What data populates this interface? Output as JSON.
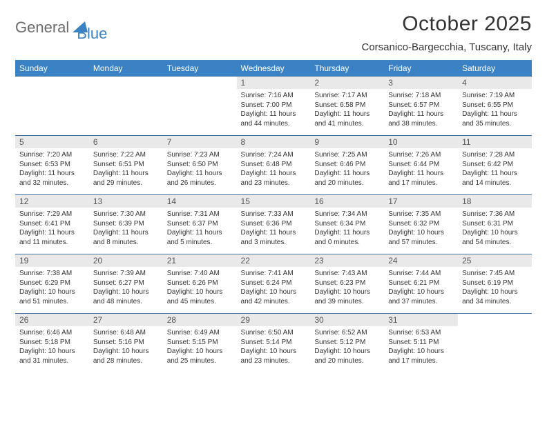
{
  "logo": {
    "word1": "General",
    "word2": "Blue",
    "mark_color": "#3b82c4",
    "text1_color": "#6b6b6b"
  },
  "header": {
    "title": "October 2025",
    "location": "Corsanico-Bargecchia, Tuscany, Italy"
  },
  "colors": {
    "header_bg": "#3b82c4",
    "header_text": "#ffffff",
    "rule": "#3b6fa0",
    "daynum_bg": "#e9e9e9",
    "body_text": "#333333"
  },
  "weekdays": [
    "Sunday",
    "Monday",
    "Tuesday",
    "Wednesday",
    "Thursday",
    "Friday",
    "Saturday"
  ],
  "cells": [
    [
      {
        "blank": true
      },
      {
        "blank": true
      },
      {
        "blank": true
      },
      {
        "n": "1",
        "sr": "7:16 AM",
        "ss": "7:00 PM",
        "dl": "11 hours and 44 minutes."
      },
      {
        "n": "2",
        "sr": "7:17 AM",
        "ss": "6:58 PM",
        "dl": "11 hours and 41 minutes."
      },
      {
        "n": "3",
        "sr": "7:18 AM",
        "ss": "6:57 PM",
        "dl": "11 hours and 38 minutes."
      },
      {
        "n": "4",
        "sr": "7:19 AM",
        "ss": "6:55 PM",
        "dl": "11 hours and 35 minutes."
      }
    ],
    [
      {
        "n": "5",
        "sr": "7:20 AM",
        "ss": "6:53 PM",
        "dl": "11 hours and 32 minutes."
      },
      {
        "n": "6",
        "sr": "7:22 AM",
        "ss": "6:51 PM",
        "dl": "11 hours and 29 minutes."
      },
      {
        "n": "7",
        "sr": "7:23 AM",
        "ss": "6:50 PM",
        "dl": "11 hours and 26 minutes."
      },
      {
        "n": "8",
        "sr": "7:24 AM",
        "ss": "6:48 PM",
        "dl": "11 hours and 23 minutes."
      },
      {
        "n": "9",
        "sr": "7:25 AM",
        "ss": "6:46 PM",
        "dl": "11 hours and 20 minutes."
      },
      {
        "n": "10",
        "sr": "7:26 AM",
        "ss": "6:44 PM",
        "dl": "11 hours and 17 minutes."
      },
      {
        "n": "11",
        "sr": "7:28 AM",
        "ss": "6:42 PM",
        "dl": "11 hours and 14 minutes."
      }
    ],
    [
      {
        "n": "12",
        "sr": "7:29 AM",
        "ss": "6:41 PM",
        "dl": "11 hours and 11 minutes."
      },
      {
        "n": "13",
        "sr": "7:30 AM",
        "ss": "6:39 PM",
        "dl": "11 hours and 8 minutes."
      },
      {
        "n": "14",
        "sr": "7:31 AM",
        "ss": "6:37 PM",
        "dl": "11 hours and 5 minutes."
      },
      {
        "n": "15",
        "sr": "7:33 AM",
        "ss": "6:36 PM",
        "dl": "11 hours and 3 minutes."
      },
      {
        "n": "16",
        "sr": "7:34 AM",
        "ss": "6:34 PM",
        "dl": "11 hours and 0 minutes."
      },
      {
        "n": "17",
        "sr": "7:35 AM",
        "ss": "6:32 PM",
        "dl": "10 hours and 57 minutes."
      },
      {
        "n": "18",
        "sr": "7:36 AM",
        "ss": "6:31 PM",
        "dl": "10 hours and 54 minutes."
      }
    ],
    [
      {
        "n": "19",
        "sr": "7:38 AM",
        "ss": "6:29 PM",
        "dl": "10 hours and 51 minutes."
      },
      {
        "n": "20",
        "sr": "7:39 AM",
        "ss": "6:27 PM",
        "dl": "10 hours and 48 minutes."
      },
      {
        "n": "21",
        "sr": "7:40 AM",
        "ss": "6:26 PM",
        "dl": "10 hours and 45 minutes."
      },
      {
        "n": "22",
        "sr": "7:41 AM",
        "ss": "6:24 PM",
        "dl": "10 hours and 42 minutes."
      },
      {
        "n": "23",
        "sr": "7:43 AM",
        "ss": "6:23 PM",
        "dl": "10 hours and 39 minutes."
      },
      {
        "n": "24",
        "sr": "7:44 AM",
        "ss": "6:21 PM",
        "dl": "10 hours and 37 minutes."
      },
      {
        "n": "25",
        "sr": "7:45 AM",
        "ss": "6:19 PM",
        "dl": "10 hours and 34 minutes."
      }
    ],
    [
      {
        "n": "26",
        "sr": "6:46 AM",
        "ss": "5:18 PM",
        "dl": "10 hours and 31 minutes."
      },
      {
        "n": "27",
        "sr": "6:48 AM",
        "ss": "5:16 PM",
        "dl": "10 hours and 28 minutes."
      },
      {
        "n": "28",
        "sr": "6:49 AM",
        "ss": "5:15 PM",
        "dl": "10 hours and 25 minutes."
      },
      {
        "n": "29",
        "sr": "6:50 AM",
        "ss": "5:14 PM",
        "dl": "10 hours and 23 minutes."
      },
      {
        "n": "30",
        "sr": "6:52 AM",
        "ss": "5:12 PM",
        "dl": "10 hours and 20 minutes."
      },
      {
        "n": "31",
        "sr": "6:53 AM",
        "ss": "5:11 PM",
        "dl": "10 hours and 17 minutes."
      },
      {
        "blank": true
      }
    ]
  ],
  "labels": {
    "sunrise": "Sunrise:",
    "sunset": "Sunset:",
    "daylight": "Daylight:"
  }
}
